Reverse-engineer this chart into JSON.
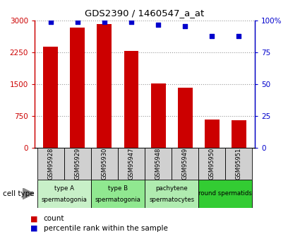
{
  "title": "GDS2390 / 1460547_a_at",
  "samples": [
    "GSM95928",
    "GSM95929",
    "GSM95930",
    "GSM95947",
    "GSM95948",
    "GSM95949",
    "GSM95950",
    "GSM95951"
  ],
  "counts": [
    2380,
    2840,
    2920,
    2280,
    1510,
    1420,
    670,
    650
  ],
  "percentiles": [
    99,
    99,
    99,
    99,
    97,
    96,
    88,
    88
  ],
  "ylim_left": [
    0,
    3000
  ],
  "ylim_right": [
    0,
    100
  ],
  "yticks_left": [
    0,
    750,
    1500,
    2250,
    3000
  ],
  "yticks_right": [
    0,
    25,
    50,
    75,
    100
  ],
  "ytick_labels_left": [
    "0",
    "750",
    "1500",
    "2250",
    "3000"
  ],
  "ytick_labels_right": [
    "0",
    "25",
    "50",
    "75",
    "100%"
  ],
  "bar_color": "#cc0000",
  "dot_color": "#0000cc",
  "cell_types": [
    {
      "label": "type A\nspermatogonia",
      "start": 0,
      "end": 2,
      "color": "#c8f0c8"
    },
    {
      "label": "type B\nspermatogonia",
      "start": 2,
      "end": 4,
      "color": "#90e890"
    },
    {
      "label": "pachytene\nspermatocytes",
      "start": 4,
      "end": 6,
      "color": "#b0ebb0"
    },
    {
      "label": "round spermatids",
      "start": 6,
      "end": 8,
      "color": "#33cc33"
    }
  ],
  "cell_type_label": "cell type",
  "legend_count_label": "count",
  "legend_pct_label": "percentile rank within the sample",
  "grid_color": "#999999",
  "bg_color": "#ffffff",
  "sample_box_color": "#d0d0d0"
}
